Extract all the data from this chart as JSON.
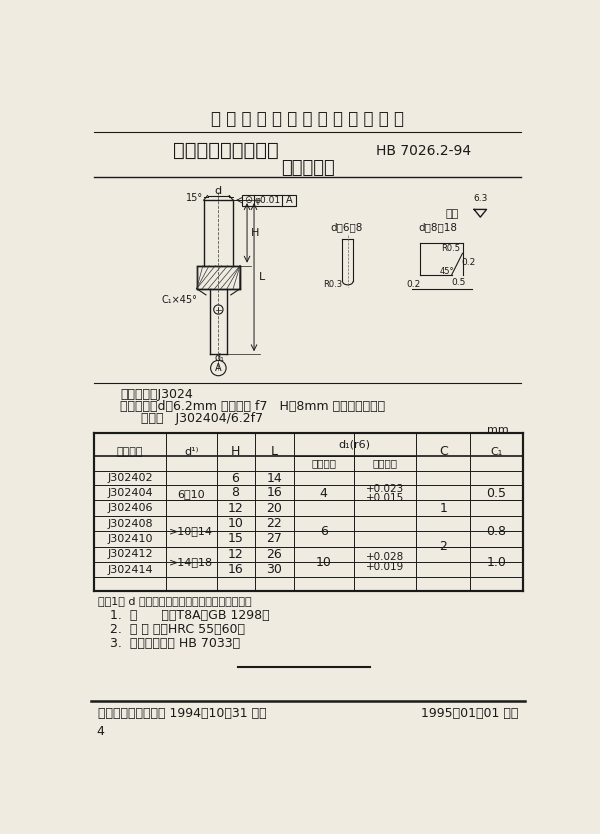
{
  "title_top": "中 华 人 民 共 和 国 航 空 工 业 标 准",
  "title_main": "夹具通用元件定位件",
  "title_std": "HB 7026.2-94",
  "title_sub": "圆柱定位销",
  "classify_label": "分类代号：J3024",
  "mark_example_line1": "标记示例：d＝6.2mm 公差带为 f7   H＝8mm 的圆柱定位销：",
  "mark_example_line2": "定位销   J302404/6.2f7",
  "unit_label": "mm",
  "note": "注：1） d 的基本尺寸号极限偏差查面设计确定。",
  "material": "1.  材      料：T8A，GB 1298。",
  "heat_treat": "2.  热 处 理：HRC 55～60。",
  "tech_cond": "3.  技术条件：按 HB 7033。",
  "footer_left": "中国航空工业总公司 1994－10－31 发布",
  "footer_right": "1995－01－01 实施",
  "page_num": "4",
  "bg_color": "#f0ebe0"
}
